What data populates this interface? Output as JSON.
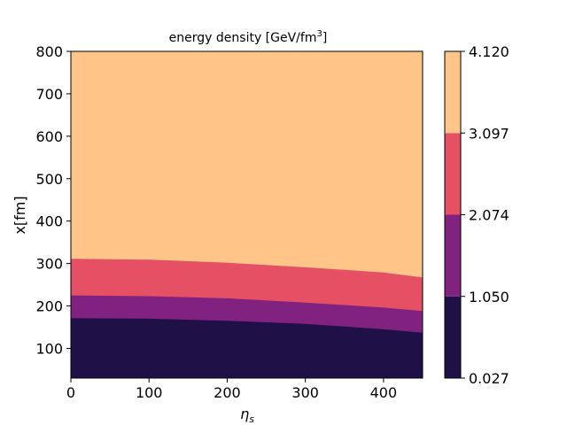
{
  "chart_data": {
    "type": "contourf",
    "title": {
      "main": "energy density [GeV/fm",
      "sup": "3",
      "end": "]"
    },
    "xlabel": {
      "symbol": "η",
      "sub": "s"
    },
    "ylabel": "x[fm]",
    "xlim": [
      0,
      450
    ],
    "ylim": [
      30,
      800
    ],
    "xticks": [
      0,
      100,
      200,
      300,
      400
    ],
    "yticks": [
      100,
      200,
      300,
      400,
      500,
      600,
      700,
      800
    ],
    "levels": [
      0.027,
      1.05,
      2.074,
      3.097,
      4.12
    ],
    "colorbar_tick_labels": [
      "0.027",
      "1.050",
      "2.074",
      "3.097",
      "4.120"
    ],
    "colors": [
      "#1f1147",
      "#822280",
      "#e55064",
      "#fec488"
    ],
    "boundaries": [
      {
        "between": [
          "0.027",
          "1.050"
        ],
        "x": [
          0,
          100,
          200,
          300,
          400,
          450
        ],
        "y": [
          171,
          170,
          165,
          158,
          145,
          137
        ]
      },
      {
        "between": [
          "1.050",
          "2.074"
        ],
        "x": [
          0,
          100,
          200,
          300,
          400,
          450
        ],
        "y": [
          225,
          223,
          218,
          208,
          196,
          188
        ]
      },
      {
        "between": [
          "2.074",
          "3.097"
        ],
        "x": [
          0,
          100,
          200,
          300,
          400,
          450
        ],
        "y": [
          311,
          309,
          302,
          291,
          279,
          267
        ]
      }
    ]
  }
}
